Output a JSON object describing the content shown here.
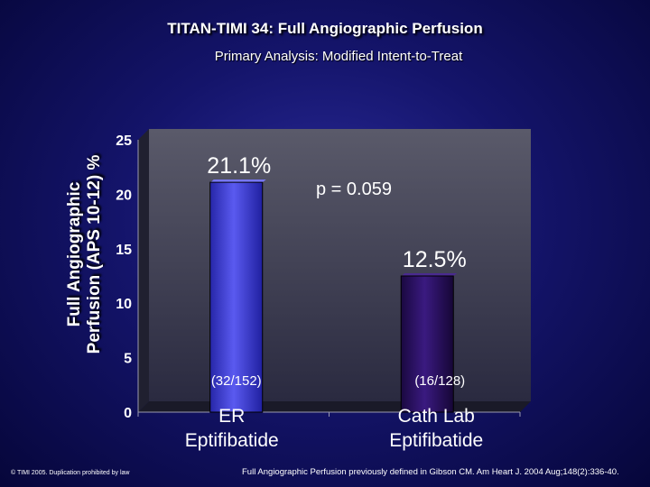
{
  "slide": {
    "title": "TITAN-TIMI 34: Full Angiographic Perfusion",
    "subtitle": "Primary Analysis: Modified Intent-to-Treat",
    "ylabel_line1": "Full Angiographic",
    "ylabel_line2": "Perfusion (APS 10-12) %",
    "pvalue": "p = 0.059",
    "copyright": "© TIMI 2005. Duplication prohibited by law",
    "footnote": "Full Angiographic Perfusion previously defined in Gibson CM. Am Heart J. 2004 Aug;148(2):336-40."
  },
  "chart_data": {
    "type": "bar",
    "title": "TITAN-TIMI 34: Full Angiographic Perfusion",
    "subtitle": "Primary Analysis: Modified Intent-to-Treat",
    "ylabel": "Full Angiographic Perfusion (APS 10-12) %",
    "xlabel": "",
    "categories": [
      "ER Eptifibatide",
      "Cath Lab Eptifibatide"
    ],
    "category_lines": [
      [
        "ER",
        "Eptifibatide"
      ],
      [
        "Cath Lab",
        "Eptifibatide"
      ]
    ],
    "values": [
      21.1,
      12.5
    ],
    "value_labels": [
      "21.1%",
      "12.5%"
    ],
    "count_labels": [
      "(32/152)",
      "(16/128)"
    ],
    "ylim": [
      0,
      25
    ],
    "yticks": [
      0,
      5,
      10,
      15,
      20,
      25
    ],
    "grid": false,
    "colors": [
      "#4646d8",
      "#2a1060"
    ]
  }
}
